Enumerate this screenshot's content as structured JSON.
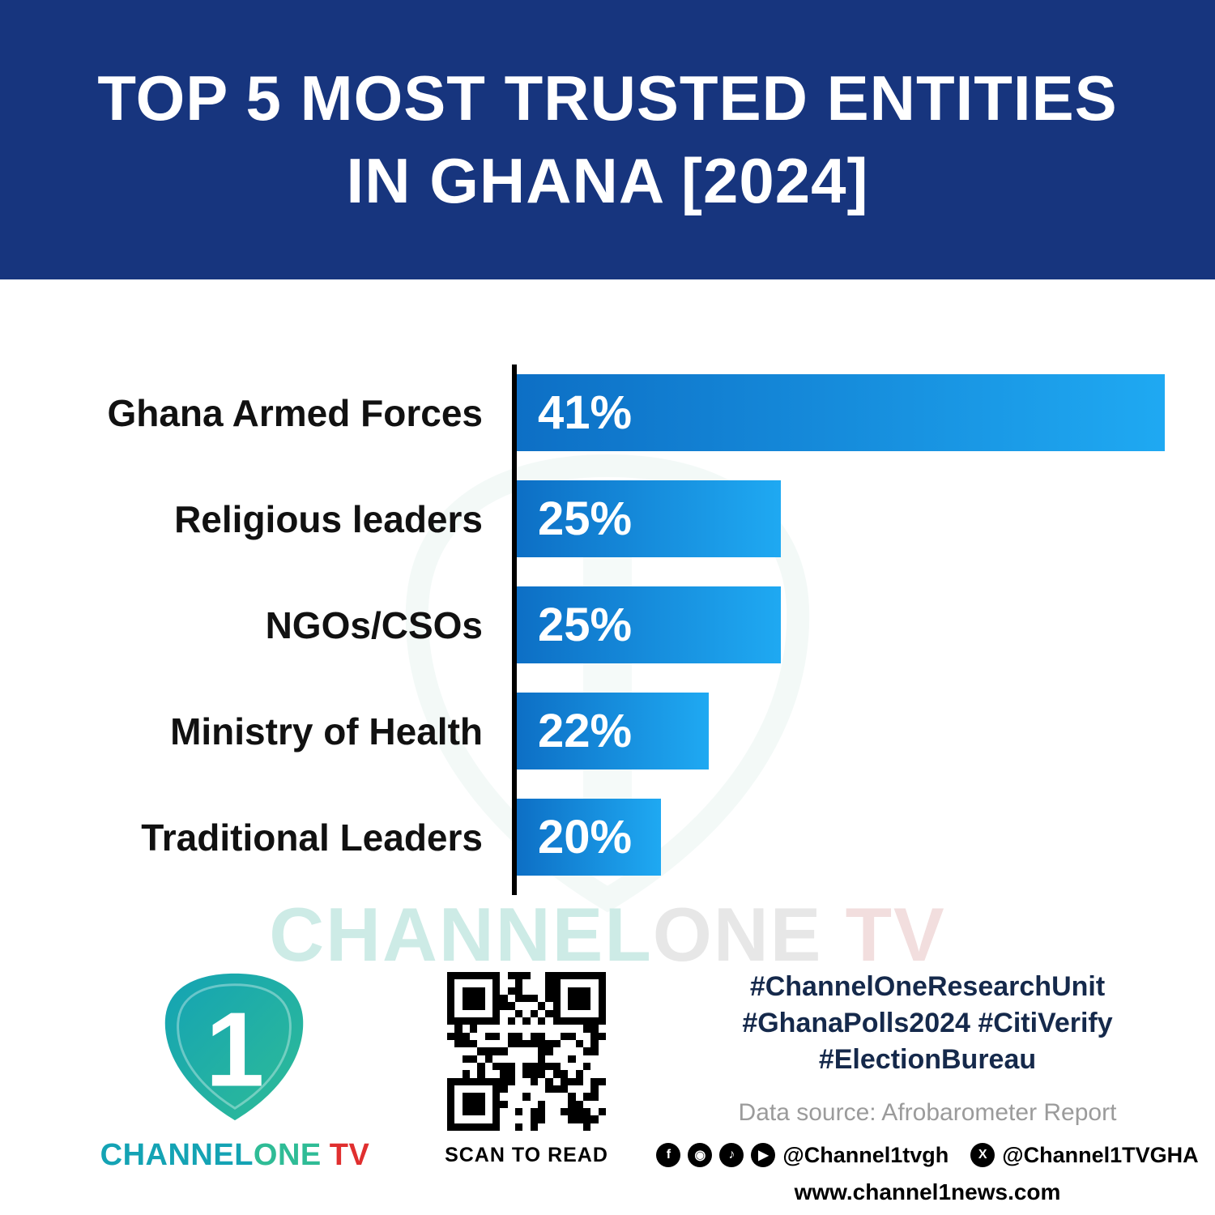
{
  "header": {
    "title_line1": "TOP 5 MOST TRUSTED ENTITIES",
    "title_line2": "IN GHANA [2024]"
  },
  "chart_data": {
    "type": "bar",
    "orientation": "horizontal",
    "title": "TOP 5 MOST TRUSTED ENTITIES IN GHANA [2024]",
    "categories": [
      "Ghana Armed Forces",
      "Religious leaders",
      "NGOs/CSOs",
      "Ministry of Health",
      "Traditional Leaders"
    ],
    "values": [
      41,
      25,
      25,
      22,
      20
    ],
    "value_labels": [
      "41%",
      "25%",
      "25%",
      "22%",
      "20%"
    ],
    "unit": "%",
    "xlim": [
      0,
      41
    ],
    "grid": false,
    "legend": false,
    "axis_line": true,
    "bar_gradient": [
      "#0D6FC5",
      "#1FA9F2"
    ]
  },
  "watermark": {
    "part1": "CHANNEL",
    "part2": "ONE",
    "part3": " TV"
  },
  "footer": {
    "logo": {
      "mark_text": "1",
      "brand_channel": "CHANNEL",
      "brand_one": "ONE",
      "brand_tv": "TV"
    },
    "qr_caption": "SCAN TO READ",
    "hashtags": [
      "#ChannelOneResearchUnit",
      "#GhanaPolls2024 #CitiVerify",
      "#ElectionBureau"
    ],
    "data_source": "Data source: Afrobarometer Report",
    "social": {
      "icons": [
        {
          "name": "facebook-icon",
          "glyph": "f"
        },
        {
          "name": "instagram-icon",
          "glyph": "◉"
        },
        {
          "name": "tiktok-icon",
          "glyph": "♪"
        },
        {
          "name": "youtube-icon",
          "glyph": "▶"
        }
      ],
      "handle_main": "@Channel1tvgh",
      "x_icon": {
        "name": "x-icon",
        "glyph": "X"
      },
      "x_handle": "@Channel1TVGHA"
    },
    "website": "www.channel1news.com"
  },
  "theme": {
    "header_bg": "#17357E",
    "bar_gradient_start": "#0D6FC5",
    "bar_gradient_end": "#1FA9F2",
    "label_color": "#111111",
    "hashtag_color": "#15294B",
    "data_source_color": "#9B9B9B",
    "brand_teal": "#14A3B4",
    "brand_green": "#2FBC96",
    "brand_red": "#E02F2F"
  }
}
